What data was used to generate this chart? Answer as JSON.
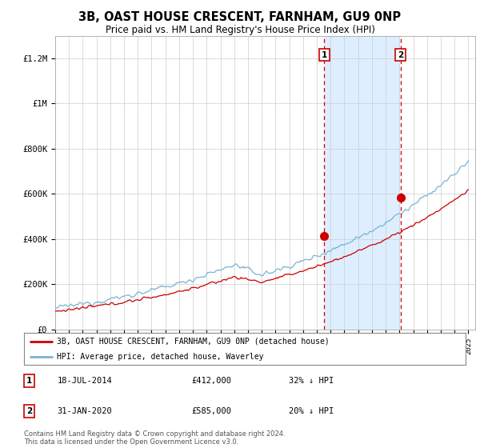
{
  "title": "3B, OAST HOUSE CRESCENT, FARNHAM, GU9 0NP",
  "subtitle": "Price paid vs. HM Land Registry's House Price Index (HPI)",
  "ylim": [
    0,
    1300000
  ],
  "yticks": [
    0,
    200000,
    400000,
    600000,
    800000,
    1000000,
    1200000
  ],
  "ytick_labels": [
    "£0",
    "£200K",
    "£400K",
    "£600K",
    "£800K",
    "£1M",
    "£1.2M"
  ],
  "hpi_color": "#7ab3d4",
  "price_color": "#cc0000",
  "shade_color": "#ddeeff",
  "marker1_x": 2014.54,
  "marker2_x": 2020.08,
  "marker1_price": 412000,
  "marker2_price": 585000,
  "legend1": "3B, OAST HOUSE CRESCENT, FARNHAM, GU9 0NP (detached house)",
  "legend2": "HPI: Average price, detached house, Waverley",
  "annot1_date": "18-JUL-2014",
  "annot1_price": "£412,000",
  "annot1_pct": "32% ↓ HPI",
  "annot2_date": "31-JAN-2020",
  "annot2_price": "£585,000",
  "annot2_pct": "20% ↓ HPI",
  "footnote": "Contains HM Land Registry data © Crown copyright and database right 2024.\nThis data is licensed under the Open Government Licence v3.0.",
  "background_color": "#ffffff",
  "grid_color": "#cccccc",
  "xstart": 1995,
  "xend": 2025
}
